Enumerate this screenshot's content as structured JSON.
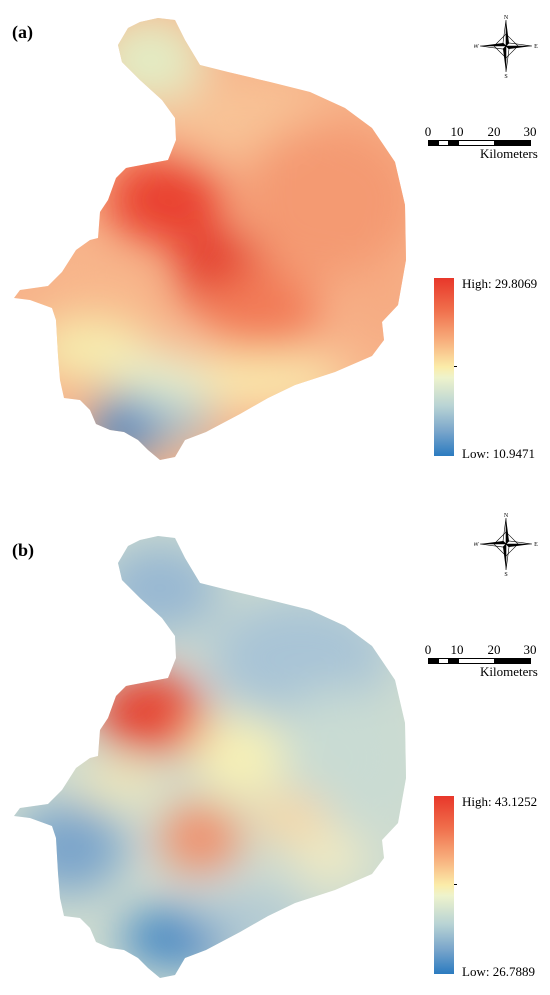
{
  "panels": [
    {
      "label": "(a)",
      "legend": {
        "high": "High: 29.8069",
        "low": "Low: 10.9471"
      },
      "scale": {
        "ticks": [
          "0",
          "10",
          "20",
          "30"
        ],
        "units": "Kilometers"
      },
      "north": {
        "n": "N",
        "s": "S",
        "e": "E",
        "w": "W"
      }
    },
    {
      "label": "(b)",
      "legend": {
        "high": "High: 43.1252",
        "low": "Low: 26.7889"
      },
      "scale": {
        "ticks": [
          "0",
          "10",
          "20",
          "30"
        ],
        "units": "Kilometers"
      },
      "north": {
        "n": "N",
        "s": "S",
        "e": "E",
        "w": "W"
      }
    }
  ],
  "colors": {
    "high": "#e8372a",
    "mid": "#fbeca9",
    "low": "#2b7bc0"
  }
}
